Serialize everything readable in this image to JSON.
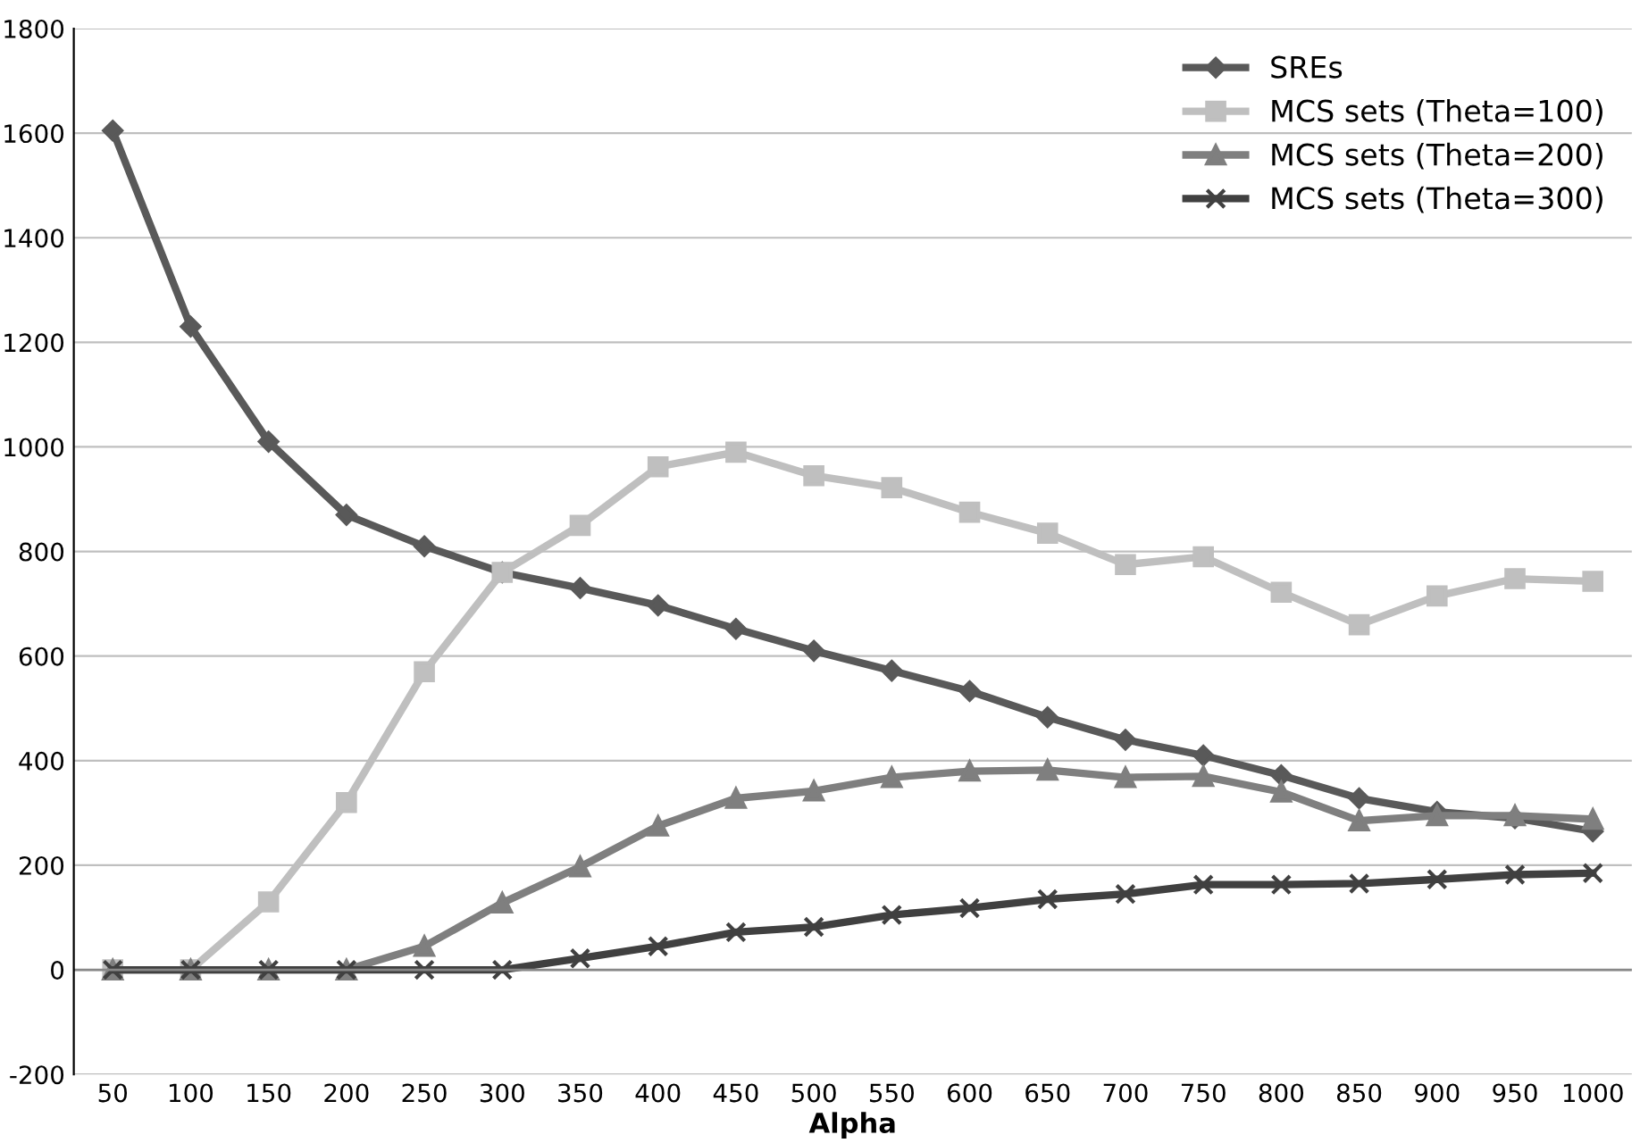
{
  "chart_data": {
    "type": "line",
    "xlabel": "Alpha",
    "categories": [
      "50",
      "100",
      "150",
      "200",
      "250",
      "300",
      "350",
      "400",
      "450",
      "500",
      "550",
      "600",
      "650",
      "700",
      "750",
      "800",
      "850",
      "900",
      "950",
      "1000"
    ],
    "series": [
      {
        "name": "SREs",
        "color": "#595959",
        "marker": "diamond",
        "values": [
          1605,
          1230,
          1010,
          870,
          810,
          760,
          730,
          697,
          652,
          610,
          572,
          533,
          483,
          440,
          410,
          372,
          328,
          302,
          290,
          265
        ]
      },
      {
        "name": "MCS sets (Theta=100)",
        "color": "#bfbfbf",
        "marker": "square",
        "values": [
          0,
          0,
          130,
          320,
          570,
          760,
          850,
          962,
          990,
          945,
          922,
          875,
          835,
          775,
          790,
          722,
          660,
          715,
          748,
          743
        ]
      },
      {
        "name": "MCS sets (Theta=200)",
        "color": "#7f7f7f",
        "marker": "triangle",
        "values": [
          0,
          0,
          0,
          0,
          45,
          128,
          197,
          275,
          328,
          342,
          368,
          380,
          382,
          368,
          370,
          340,
          285,
          295,
          295,
          288
        ]
      },
      {
        "name": "MCS sets (Theta=300)",
        "color": "#404040",
        "marker": "cross",
        "values": [
          0,
          0,
          0,
          0,
          0,
          0,
          22,
          45,
          72,
          82,
          105,
          118,
          135,
          145,
          163,
          163,
          165,
          173,
          182,
          185
        ]
      }
    ],
    "ylim": [
      -200,
      1800
    ],
    "yticks": [
      -200,
      0,
      200,
      400,
      600,
      800,
      1000,
      1200,
      1400,
      1600,
      1800
    ],
    "grid": "y",
    "legend": "top right",
    "line_style": "solid"
  }
}
